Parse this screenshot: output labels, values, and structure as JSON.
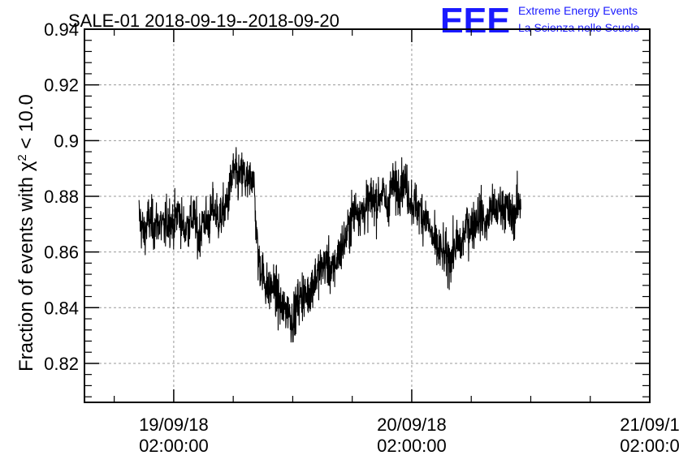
{
  "title": "SALE-01 2018-09-19--2018-09-20",
  "logo": {
    "mark": "EEE",
    "line1": "Extreme Energy Events",
    "line2": "La Scienza nelle Scuole",
    "color": "#1a1aff"
  },
  "y_axis_title": {
    "prefix": "Fraction of events with ",
    "symbol": "χ",
    "superscript": "2",
    "suffix": " < 10.0"
  },
  "chart_data": {
    "type": "line",
    "title": "SALE-01 2018-09-19--2018-09-20",
    "ylabel": "Fraction of events with χ² < 10.0",
    "xlabel": "",
    "ylim": [
      0.806,
      0.94
    ],
    "xlim": [
      "2018-09-18 17:00",
      "2018-09-21 02:00"
    ],
    "y_ticks": [
      0.82,
      0.84,
      0.86,
      0.88,
      0.9,
      0.92,
      0.94
    ],
    "y_tick_labels": [
      "0.82",
      "0.84",
      "0.86",
      "0.88",
      "0.9",
      "0.92",
      "0.94"
    ],
    "x_ticks": [
      {
        "x": "2018-09-19 02:00",
        "date": "19/09/18",
        "time": "02:00:00"
      },
      {
        "x": "2018-09-20 02:00",
        "date": "20/09/18",
        "time": "02:00:00"
      },
      {
        "x": "2018-09-21 02:00",
        "date": "21/09/1",
        "time": "02:00:0"
      }
    ],
    "grid": true,
    "line_color": "#000000",
    "series": [
      {
        "x_start": "2018-09-18 22:30",
        "x_step_minutes": 30,
        "values": [
          0.873,
          0.866,
          0.872,
          0.869,
          0.871,
          0.868,
          0.872,
          0.87,
          0.875,
          0.868,
          0.87,
          0.873,
          0.865,
          0.872,
          0.87,
          0.876,
          0.872,
          0.874,
          0.879,
          0.889,
          0.886,
          0.888,
          0.884,
          0.889,
          0.858,
          0.852,
          0.846,
          0.848,
          0.843,
          0.839,
          0.84,
          0.835,
          0.842,
          0.845,
          0.844,
          0.849,
          0.852,
          0.855,
          0.856,
          0.852,
          0.858,
          0.862,
          0.867,
          0.873,
          0.876,
          0.874,
          0.877,
          0.879,
          0.878,
          0.882,
          0.876,
          0.884,
          0.882,
          0.886,
          0.883,
          0.878,
          0.876,
          0.874,
          0.872,
          0.866,
          0.861,
          0.86,
          0.858,
          0.858,
          0.863,
          0.862,
          0.87,
          0.869,
          0.872,
          0.874,
          0.869,
          0.876,
          0.874,
          0.877,
          0.876,
          0.872,
          0.875,
          0.879
        ]
      }
    ]
  }
}
